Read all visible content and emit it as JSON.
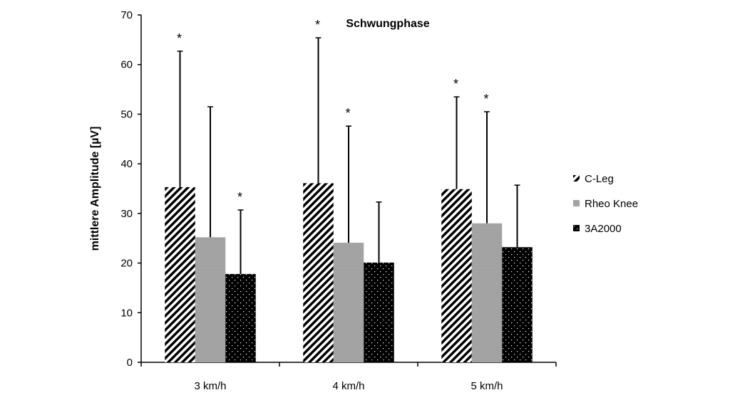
{
  "chart_data": {
    "type": "bar",
    "title": "Schwungphase",
    "xlabel": "",
    "ylabel": "mittlere Amplitude [µV]",
    "ylim": [
      0,
      70
    ],
    "yticks": [
      0,
      10,
      20,
      30,
      40,
      50,
      60,
      70
    ],
    "grid": false,
    "legend_position": "right",
    "categories": [
      "3 km/h",
      "4 km/h",
      "5 km/h"
    ],
    "series": [
      {
        "name": "C-Leg",
        "pattern": "diagonal-stripes",
        "values": [
          35.3,
          36.1,
          34.9
        ],
        "error_upper": [
          62.7,
          65.4,
          53.5
        ],
        "significant": [
          true,
          true,
          true
        ]
      },
      {
        "name": "Rheo Knee",
        "pattern": "gray",
        "values": [
          25.2,
          24.1,
          28.0
        ],
        "error_upper": [
          51.5,
          47.6,
          50.5
        ],
        "significant": [
          false,
          true,
          true
        ]
      },
      {
        "name": "3A2000",
        "pattern": "black-dotted",
        "values": [
          17.8,
          20.1,
          23.2
        ],
        "error_upper": [
          30.7,
          32.3,
          35.7
        ],
        "significant": [
          true,
          false,
          false
        ]
      }
    ],
    "significance_marker": "*"
  }
}
